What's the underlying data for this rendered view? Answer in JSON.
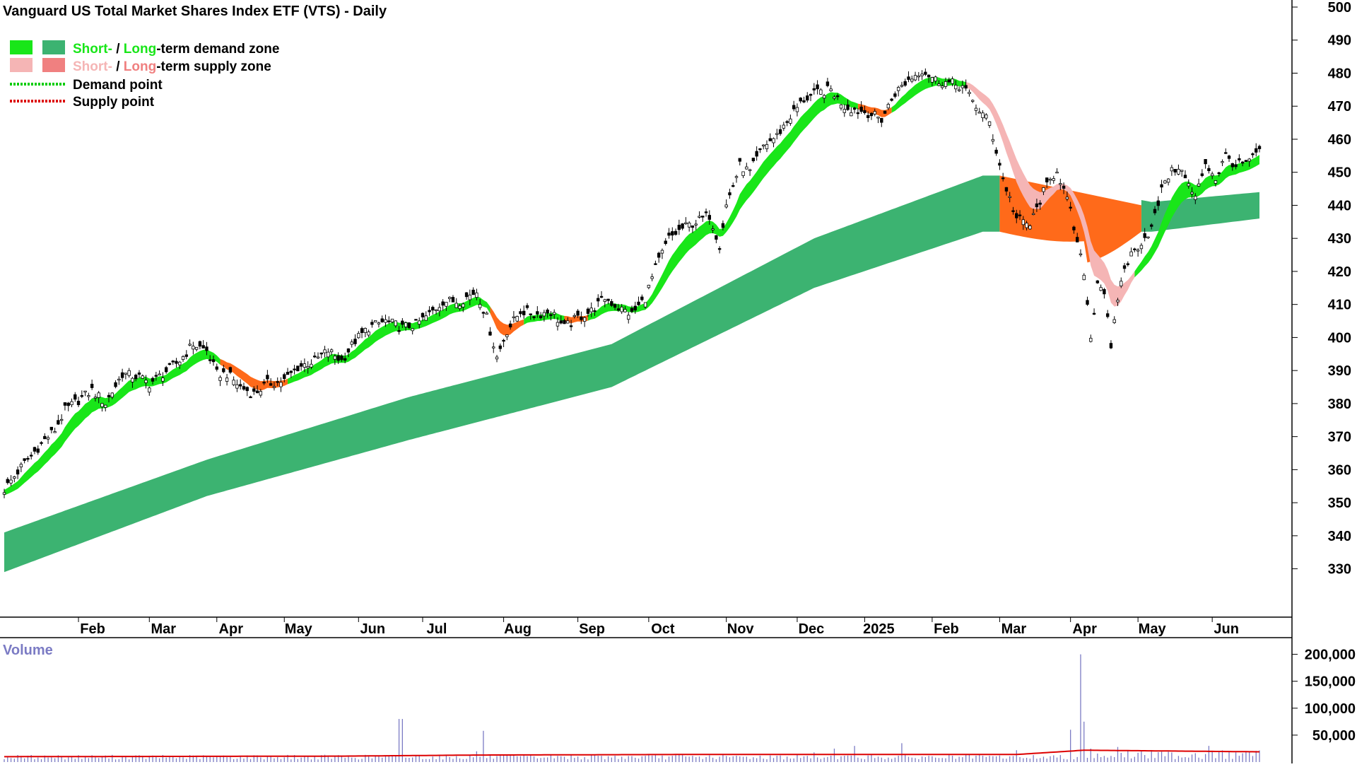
{
  "chart_data": {
    "type": "candlestick",
    "title": "Vanguard US Total Market Shares Index ETF (VTS) - Daily",
    "legend": [
      {
        "name": "short_demand",
        "short_color": "#19e619",
        "long_color": "#3cb371",
        "text_short": "Short-",
        "text_sep": " / ",
        "text_long": "Long",
        "text_rest": "-term demand zone"
      },
      {
        "name": "short_supply",
        "short_color": "#f5b5b5",
        "long_color": "#f08080",
        "text_short": "Short-",
        "text_sep": " / ",
        "text_long": "Long",
        "text_rest": "-term supply zone"
      },
      {
        "name": "demand_point",
        "color": "#00cc00",
        "text": "Demand point"
      },
      {
        "name": "supply_point",
        "color": "#dd0000",
        "text": "Supply point"
      }
    ],
    "colors": {
      "short_demand": "#19e619",
      "long_demand": "#3cb371",
      "short_supply": "#f5b5b5",
      "long_supply": "#ff6a1a",
      "volume": "#7b7bc4",
      "volume_avg": "#dd0000",
      "legend_green_text": "#19e619",
      "legend_pink_text": "#f5b5b5"
    },
    "price_axis": {
      "min": 322,
      "max": 500,
      "ticks": [
        330,
        340,
        350,
        360,
        370,
        380,
        390,
        400,
        410,
        420,
        430,
        440,
        450,
        460,
        470,
        480,
        490,
        500
      ]
    },
    "volume_axis": {
      "title": "Volume",
      "min": 0,
      "max": 210000,
      "ticks": [
        50000,
        100000,
        150000,
        200000
      ],
      "tick_labels": [
        "50,000",
        "100,000",
        "150,000",
        "200,000"
      ]
    },
    "months": [
      {
        "label": "Feb",
        "index": 22
      },
      {
        "label": "Mar",
        "index": 43
      },
      {
        "label": "Apr",
        "index": 63
      },
      {
        "label": "May",
        "index": 83
      },
      {
        "label": "Jun",
        "index": 105
      },
      {
        "label": "Jul",
        "index": 124
      },
      {
        "label": "Aug",
        "index": 148
      },
      {
        "label": "Sep",
        "index": 170
      },
      {
        "label": "Oct",
        "index": 191
      },
      {
        "label": "Nov",
        "index": 214
      },
      {
        "label": "Dec",
        "index": 235
      },
      {
        "label": "2025",
        "index": 255
      },
      {
        "label": "Feb",
        "index": 275
      },
      {
        "label": "Mar",
        "index": 295
      },
      {
        "label": "Apr",
        "index": 316
      },
      {
        "label": "May",
        "index": 336
      },
      {
        "label": "Jun",
        "index": 358
      }
    ],
    "bar_count": 373,
    "close_anchors": [
      [
        0,
        354
      ],
      [
        6,
        362
      ],
      [
        12,
        369
      ],
      [
        15,
        372
      ],
      [
        18,
        378
      ],
      [
        22,
        381
      ],
      [
        26,
        384
      ],
      [
        30,
        380
      ],
      [
        35,
        389
      ],
      [
        40,
        388
      ],
      [
        43,
        386
      ],
      [
        47,
        389
      ],
      [
        52,
        393
      ],
      [
        56,
        398
      ],
      [
        60,
        396
      ],
      [
        63,
        389
      ],
      [
        66,
        389
      ],
      [
        70,
        385
      ],
      [
        74,
        383
      ],
      [
        78,
        386
      ],
      [
        83,
        387
      ],
      [
        87,
        391
      ],
      [
        92,
        393
      ],
      [
        96,
        396
      ],
      [
        100,
        393
      ],
      [
        104,
        399
      ],
      [
        108,
        403
      ],
      [
        113,
        405
      ],
      [
        118,
        403
      ],
      [
        122,
        404
      ],
      [
        126,
        407
      ],
      [
        130,
        411
      ],
      [
        135,
        411
      ],
      [
        140,
        414
      ],
      [
        143,
        406
      ],
      [
        146,
        394
      ],
      [
        149,
        402
      ],
      [
        153,
        408
      ],
      [
        158,
        407
      ],
      [
        162,
        408
      ],
      [
        166,
        403
      ],
      [
        170,
        406
      ],
      [
        174,
        408
      ],
      [
        178,
        412
      ],
      [
        182,
        409
      ],
      [
        186,
        407
      ],
      [
        190,
        412
      ],
      [
        193,
        421
      ],
      [
        197,
        430
      ],
      [
        201,
        433
      ],
      [
        205,
        435
      ],
      [
        209,
        437
      ],
      [
        212,
        428
      ],
      [
        214,
        440
      ],
      [
        218,
        452
      ],
      [
        221,
        450
      ],
      [
        225,
        458
      ],
      [
        229,
        461
      ],
      [
        233,
        467
      ],
      [
        237,
        472
      ],
      [
        241,
        474
      ],
      [
        245,
        475
      ],
      [
        249,
        470
      ],
      [
        252,
        469
      ],
      [
        256,
        468
      ],
      [
        260,
        466
      ],
      [
        264,
        474
      ],
      [
        268,
        478
      ],
      [
        272,
        481
      ],
      [
        276,
        478
      ],
      [
        280,
        477
      ],
      [
        284,
        476
      ],
      [
        288,
        470
      ],
      [
        292,
        465
      ],
      [
        296,
        448
      ],
      [
        300,
        436
      ],
      [
        304,
        434
      ],
      [
        308,
        444
      ],
      [
        312,
        451
      ],
      [
        316,
        438
      ],
      [
        318,
        428
      ],
      [
        320,
        420
      ],
      [
        322,
        400
      ],
      [
        324,
        417
      ],
      [
        326,
        414
      ],
      [
        328,
        396
      ],
      [
        330,
        412
      ],
      [
        332,
        421
      ],
      [
        334,
        425
      ],
      [
        337,
        429
      ],
      [
        340,
        433
      ],
      [
        344,
        448
      ],
      [
        348,
        452
      ],
      [
        350,
        448
      ],
      [
        353,
        442
      ],
      [
        356,
        453
      ],
      [
        359,
        448
      ],
      [
        362,
        455
      ],
      [
        365,
        452
      ],
      [
        369,
        453
      ],
      [
        372,
        457
      ]
    ],
    "long_demand_upper": [
      [
        0,
        341
      ],
      [
        60,
        363
      ],
      [
        120,
        382
      ],
      [
        180,
        398
      ],
      [
        240,
        430
      ],
      [
        290,
        449
      ],
      [
        300,
        449
      ],
      [
        340,
        441
      ],
      [
        372,
        444
      ]
    ],
    "long_demand_lower": [
      [
        0,
        329
      ],
      [
        60,
        352
      ],
      [
        120,
        369
      ],
      [
        180,
        385
      ],
      [
        240,
        415
      ],
      [
        290,
        432
      ],
      [
        300,
        432
      ],
      [
        340,
        432
      ],
      [
        372,
        436
      ]
    ],
    "volume_series": {
      "base": 8000,
      "spikes": [
        [
          117,
          80000
        ],
        [
          118,
          80000
        ],
        [
          140,
          20000
        ],
        [
          142,
          58000
        ],
        [
          200,
          15000
        ],
        [
          240,
          18000
        ],
        [
          246,
          25000
        ],
        [
          252,
          30000
        ],
        [
          266,
          35000
        ],
        [
          300,
          22000
        ],
        [
          316,
          60000
        ],
        [
          319,
          200000
        ],
        [
          320,
          75000
        ],
        [
          322,
          25000
        ],
        [
          330,
          28000
        ],
        [
          357,
          30000
        ]
      ]
    },
    "volume_avg": [
      [
        0,
        10000
      ],
      [
        100,
        11000
      ],
      [
        140,
        13000
      ],
      [
        200,
        14000
      ],
      [
        300,
        14000
      ],
      [
        320,
        22000
      ],
      [
        372,
        19000
      ]
    ]
  }
}
